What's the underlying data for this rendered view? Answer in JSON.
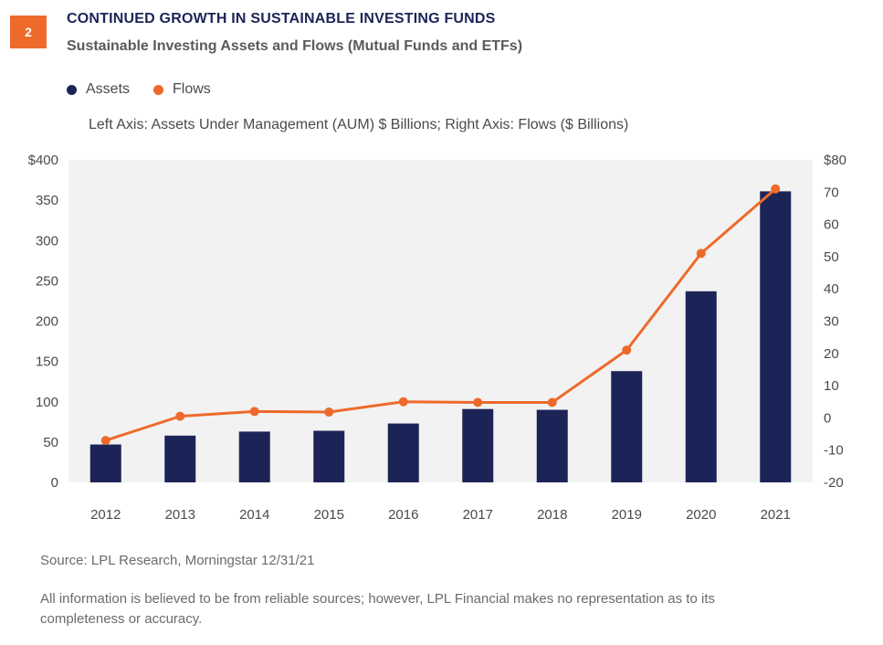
{
  "header": {
    "figure_number": "2",
    "title": "CONTINUED GROWTH IN SUSTAINABLE INVESTING FUNDS",
    "subtitle": "Sustainable Investing Assets and Flows (Mutual Funds and ETFs)"
  },
  "legend": [
    {
      "label": "Assets",
      "color": "#1c2457"
    },
    {
      "label": "Flows",
      "color": "#ee6a2b"
    }
  ],
  "axis_note": "Left Axis: Assets Under Management (AUM) $ Billions; Right Axis: Flows ($ Billions)",
  "footer": {
    "source": "Source: LPL Research, Morningstar  12/31/21",
    "disclaimer": "All information is believed to be from reliable sources; however, LPL Financial makes no representation as to its completeness or accuracy."
  },
  "chart_data": {
    "type": "bar",
    "categories": [
      "2012",
      "2013",
      "2014",
      "2015",
      "2016",
      "2017",
      "2018",
      "2019",
      "2020",
      "2021"
    ],
    "series": [
      {
        "name": "Assets",
        "type": "bar",
        "axis": "left",
        "color": "#1c2457",
        "values": [
          47,
          58,
          63,
          64,
          73,
          91,
          90,
          138,
          237,
          361
        ]
      },
      {
        "name": "Flows",
        "type": "line",
        "axis": "right",
        "color": "#ee6a2b",
        "values": [
          -7,
          0.5,
          2,
          1.8,
          5,
          4.8,
          4.8,
          21,
          51,
          71
        ]
      }
    ],
    "left_axis": {
      "ylim": [
        0,
        400
      ],
      "ticks": [
        0,
        50,
        100,
        150,
        200,
        250,
        300,
        350,
        400
      ],
      "tick_labels": [
        "0",
        "50",
        "100",
        "150",
        "200",
        "250",
        "300",
        "350",
        "$400"
      ]
    },
    "right_axis": {
      "ylim": [
        -20,
        80
      ],
      "ticks": [
        -20,
        -10,
        0,
        10,
        20,
        30,
        40,
        50,
        60,
        70,
        80
      ],
      "tick_labels": [
        "-20",
        "-10",
        "0",
        "10",
        "20",
        "30",
        "40",
        "50",
        "60",
        "70",
        "$80"
      ]
    },
    "plot_background": "#f2f2f2",
    "grid": false
  }
}
